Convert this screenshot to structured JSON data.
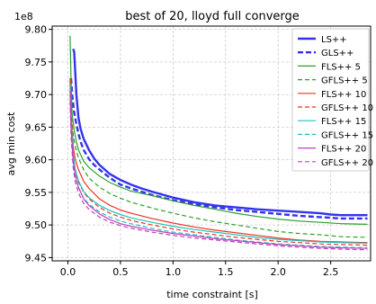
{
  "chart_data": {
    "type": "line",
    "title": "best of 20, lloyd full converge",
    "xlabel": "time constraint [s]",
    "ylabel": "avg min cost",
    "y_offset_label": "1e8",
    "y_multiplier": 100000000,
    "xlim": [
      -0.15,
      2.88
    ],
    "ylim": [
      9.445,
      9.805
    ],
    "xticks": [
      0.0,
      0.5,
      1.0,
      1.5,
      2.0,
      2.5
    ],
    "xtick_labels": [
      "0.0",
      "0.5",
      "1.0",
      "1.5",
      "2.0",
      "2.5"
    ],
    "yticks": [
      9.45,
      9.5,
      9.55,
      9.6,
      9.65,
      9.7,
      9.75,
      9.8
    ],
    "ytick_labels": [
      "9.45",
      "9.50",
      "9.55",
      "9.60",
      "9.65",
      "9.70",
      "9.75",
      "9.80"
    ],
    "grid": true,
    "legend_position": "upper right",
    "series": [
      {
        "name": "LS++",
        "color": "#3333ee",
        "dash": "solid",
        "width": 2.4,
        "x": [
          0.05,
          0.06,
          0.08,
          0.1,
          0.12,
          0.15,
          0.2,
          0.25,
          0.3,
          0.4,
          0.5,
          0.6,
          0.7,
          0.8,
          1.0,
          1.2,
          1.4,
          1.6,
          1.8,
          2.0,
          2.2,
          2.4,
          2.5,
          2.6,
          2.7,
          2.85
        ],
        "y": [
          9.77,
          9.765,
          9.7,
          9.665,
          9.648,
          9.632,
          9.615,
          9.602,
          9.592,
          9.578,
          9.569,
          9.562,
          9.556,
          9.551,
          9.542,
          9.535,
          9.53,
          9.527,
          9.524,
          9.522,
          9.52,
          9.518,
          9.516,
          9.515,
          9.515,
          9.515
        ]
      },
      {
        "name": "GLS++",
        "color": "#3333ee",
        "dash": "6,3",
        "width": 2.4,
        "x": [
          0.03,
          0.04,
          0.06,
          0.08,
          0.1,
          0.12,
          0.15,
          0.2,
          0.25,
          0.3,
          0.4,
          0.5,
          0.6,
          0.7,
          0.8,
          1.0,
          1.2,
          1.4,
          1.6,
          1.8,
          2.0,
          2.2,
          2.4,
          2.6,
          2.85
        ],
        "y": [
          9.725,
          9.7,
          9.672,
          9.655,
          9.64,
          9.628,
          9.615,
          9.601,
          9.592,
          9.585,
          9.572,
          9.562,
          9.556,
          9.551,
          9.546,
          9.538,
          9.532,
          9.527,
          9.523,
          9.52,
          9.517,
          9.514,
          9.512,
          9.51,
          9.51
        ]
      },
      {
        "name": "FLS++ 5",
        "color": "#2ca02c",
        "dash": "solid",
        "width": 1.2,
        "x": [
          0.02,
          0.03,
          0.04,
          0.06,
          0.08,
          0.1,
          0.15,
          0.2,
          0.3,
          0.4,
          0.5,
          0.6,
          0.8,
          1.0,
          1.2,
          1.4,
          1.6,
          1.8,
          2.0,
          2.2,
          2.4,
          2.6,
          2.85
        ],
        "y": [
          9.79,
          9.72,
          9.67,
          9.645,
          9.628,
          9.615,
          9.598,
          9.588,
          9.575,
          9.565,
          9.558,
          9.552,
          9.545,
          9.537,
          9.53,
          9.524,
          9.518,
          9.513,
          9.509,
          9.506,
          9.504,
          9.502,
          9.501
        ]
      },
      {
        "name": "GFLS++ 5",
        "color": "#2ca02c",
        "dash": "5,3",
        "width": 1.2,
        "x": [
          0.02,
          0.03,
          0.05,
          0.07,
          0.1,
          0.15,
          0.2,
          0.3,
          0.4,
          0.5,
          0.6,
          0.8,
          1.0,
          1.2,
          1.4,
          1.6,
          1.8,
          2.0,
          2.2,
          2.4,
          2.6,
          2.85
        ],
        "y": [
          9.72,
          9.672,
          9.638,
          9.62,
          9.603,
          9.585,
          9.572,
          9.558,
          9.548,
          9.541,
          9.535,
          9.526,
          9.518,
          9.511,
          9.505,
          9.5,
          9.495,
          9.49,
          9.487,
          9.485,
          9.482,
          9.481
        ]
      },
      {
        "name": "FLS++ 10",
        "color": "#ee3322",
        "dash": "solid",
        "width": 1.2,
        "x": [
          0.02,
          0.03,
          0.05,
          0.07,
          0.1,
          0.15,
          0.2,
          0.3,
          0.4,
          0.5,
          0.6,
          0.8,
          1.0,
          1.2,
          1.4,
          1.6,
          1.8,
          2.0,
          2.2,
          2.4,
          2.6,
          2.85
        ],
        "y": [
          9.725,
          9.67,
          9.62,
          9.6,
          9.585,
          9.567,
          9.556,
          9.54,
          9.53,
          9.523,
          9.518,
          9.51,
          9.503,
          9.497,
          9.492,
          9.488,
          9.484,
          9.48,
          9.477,
          9.475,
          9.474,
          9.473
        ]
      },
      {
        "name": "GFLS++ 10",
        "color": "#ee3322",
        "dash": "5,3",
        "width": 1.2,
        "x": [
          0.02,
          0.03,
          0.05,
          0.07,
          0.1,
          0.15,
          0.2,
          0.3,
          0.4,
          0.5,
          0.6,
          0.8,
          1.0,
          1.2,
          1.4,
          1.6,
          1.8,
          2.0,
          2.2,
          2.4,
          2.6,
          2.85
        ],
        "y": [
          9.71,
          9.652,
          9.605,
          9.583,
          9.566,
          9.55,
          9.54,
          9.527,
          9.518,
          9.512,
          9.507,
          9.5,
          9.494,
          9.489,
          9.485,
          9.481,
          9.478,
          9.475,
          9.473,
          9.471,
          9.47,
          9.469
        ]
      },
      {
        "name": "FLS++ 15",
        "color": "#20c0c0",
        "dash": "solid",
        "width": 1.2,
        "x": [
          0.02,
          0.03,
          0.05,
          0.07,
          0.1,
          0.15,
          0.2,
          0.3,
          0.4,
          0.5,
          0.6,
          0.8,
          1.0,
          1.2,
          1.4,
          1.6,
          1.8,
          2.0,
          2.2,
          2.4,
          2.6,
          2.85
        ],
        "y": [
          9.715,
          9.66,
          9.608,
          9.585,
          9.568,
          9.551,
          9.542,
          9.53,
          9.522,
          9.516,
          9.511,
          9.504,
          9.498,
          9.493,
          9.489,
          9.485,
          9.481,
          9.478,
          9.476,
          9.474,
          9.473,
          9.472
        ]
      },
      {
        "name": "GFLS++ 15",
        "color": "#20c0c0",
        "dash": "5,3",
        "width": 1.2,
        "x": [
          0.02,
          0.03,
          0.05,
          0.07,
          0.1,
          0.15,
          0.2,
          0.3,
          0.4,
          0.5,
          0.6,
          0.8,
          1.0,
          1.2,
          1.4,
          1.6,
          1.8,
          2.0,
          2.2,
          2.4,
          2.6,
          2.85
        ],
        "y": [
          9.7,
          9.645,
          9.596,
          9.574,
          9.557,
          9.541,
          9.532,
          9.52,
          9.512,
          9.506,
          9.502,
          9.495,
          9.489,
          9.485,
          9.481,
          9.477,
          9.474,
          9.471,
          9.469,
          9.467,
          9.466,
          9.465
        ]
      },
      {
        "name": "FLS++ 20",
        "color": "#c040c0",
        "dash": "solid",
        "width": 1.2,
        "x": [
          0.02,
          0.03,
          0.05,
          0.07,
          0.1,
          0.15,
          0.2,
          0.3,
          0.4,
          0.5,
          0.6,
          0.8,
          1.0,
          1.2,
          1.4,
          1.6,
          1.8,
          2.0,
          2.2,
          2.4,
          2.6,
          2.85
        ],
        "y": [
          9.705,
          9.65,
          9.598,
          9.576,
          9.558,
          9.54,
          9.53,
          9.517,
          9.508,
          9.502,
          9.498,
          9.492,
          9.487,
          9.483,
          9.479,
          9.476,
          9.473,
          9.47,
          9.468,
          9.466,
          9.465,
          9.464
        ]
      },
      {
        "name": "GFLS++ 20",
        "color": "#c040c0",
        "dash": "5,3",
        "width": 1.2,
        "x": [
          0.02,
          0.03,
          0.05,
          0.07,
          0.1,
          0.15,
          0.2,
          0.3,
          0.4,
          0.5,
          0.6,
          0.8,
          1.0,
          1.2,
          1.4,
          1.6,
          1.8,
          2.0,
          2.2,
          2.4,
          2.6,
          2.85
        ],
        "y": [
          9.69,
          9.635,
          9.588,
          9.566,
          9.549,
          9.533,
          9.524,
          9.512,
          9.504,
          9.499,
          9.495,
          9.489,
          9.484,
          9.48,
          9.477,
          9.474,
          9.471,
          9.468,
          9.466,
          9.464,
          9.463,
          9.462
        ]
      }
    ]
  }
}
